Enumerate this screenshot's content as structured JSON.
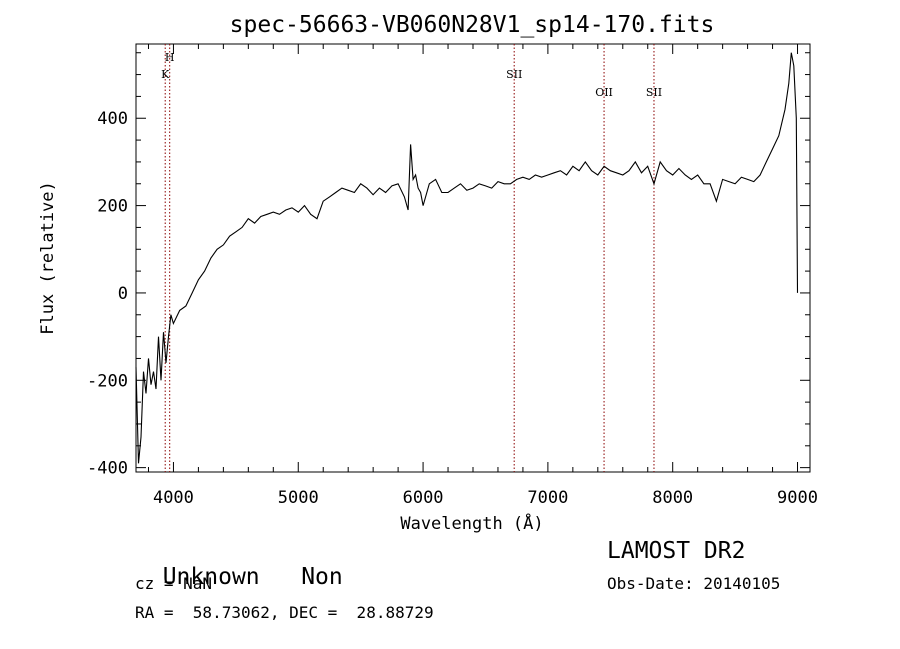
{
  "chart_data": {
    "type": "line",
    "title": "spec-56663-VB060N28V1_sp14-170.fits",
    "xlabel": "Wavelength (Å)",
    "ylabel": "Flux (relative)",
    "xlim": [
      3700,
      9100
    ],
    "ylim": [
      -410,
      570
    ],
    "x_ticks": [
      4000,
      5000,
      6000,
      7000,
      8000,
      9000
    ],
    "y_ticks": [
      -400,
      -200,
      0,
      200,
      400
    ],
    "grid": false,
    "line_color": "#000000",
    "marker_color": "#8b0000",
    "lines": [
      {
        "name": "H",
        "wavelength": 3970
      },
      {
        "name": "K",
        "wavelength": 3934
      },
      {
        "name": "SII",
        "wavelength": 6730
      },
      {
        "name": "OII",
        "wavelength": 7450
      },
      {
        "name": "SII",
        "wavelength": 7850
      }
    ],
    "series": [
      {
        "x": [
          3700,
          3720,
          3740,
          3760,
          3780,
          3800,
          3820,
          3840,
          3860,
          3880,
          3900,
          3920,
          3940,
          3960,
          3980,
          4000,
          4050,
          4100,
          4150,
          4200,
          4250,
          4300,
          4350,
          4400,
          4450,
          4500,
          4550,
          4600,
          4650,
          4700,
          4750,
          4800,
          4850,
          4900,
          4950,
          5000,
          5050,
          5100,
          5150,
          5200,
          5250,
          5300,
          5350,
          5400,
          5450,
          5500,
          5550,
          5600,
          5650,
          5700,
          5750,
          5800,
          5850,
          5880,
          5900,
          5920,
          5940,
          5960,
          5980,
          6000,
          6050,
          6100,
          6150,
          6200,
          6250,
          6300,
          6350,
          6400,
          6450,
          6500,
          6550,
          6600,
          6650,
          6700,
          6750,
          6800,
          6850,
          6900,
          6950,
          7000,
          7050,
          7100,
          7150,
          7200,
          7250,
          7300,
          7350,
          7400,
          7450,
          7500,
          7550,
          7600,
          7650,
          7700,
          7750,
          7800,
          7850,
          7900,
          7950,
          8000,
          8050,
          8100,
          8150,
          8200,
          8250,
          8300,
          8350,
          8400,
          8450,
          8500,
          8550,
          8600,
          8650,
          8700,
          8750,
          8800,
          8850,
          8900,
          8930,
          8950,
          8970,
          8990,
          9000
        ],
        "values": [
          -170,
          -390,
          -330,
          -180,
          -230,
          -150,
          -210,
          -180,
          -220,
          -100,
          -200,
          -90,
          -160,
          -100,
          -50,
          -70,
          -40,
          -30,
          0,
          30,
          50,
          80,
          100,
          110,
          130,
          140,
          150,
          170,
          160,
          175,
          180,
          185,
          180,
          190,
          195,
          185,
          200,
          180,
          170,
          210,
          220,
          230,
          240,
          235,
          230,
          250,
          240,
          225,
          240,
          230,
          245,
          250,
          220,
          190,
          340,
          260,
          270,
          240,
          230,
          200,
          250,
          260,
          230,
          230,
          240,
          250,
          235,
          240,
          250,
          245,
          240,
          255,
          250,
          250,
          260,
          265,
          260,
          270,
          265,
          270,
          275,
          280,
          270,
          290,
          280,
          300,
          280,
          270,
          290,
          280,
          275,
          270,
          280,
          300,
          275,
          290,
          250,
          300,
          280,
          270,
          285,
          270,
          260,
          270,
          250,
          250,
          210,
          260,
          255,
          250,
          265,
          260,
          255,
          270,
          300,
          330,
          360,
          420,
          480,
          550,
          520,
          400,
          0
        ]
      }
    ]
  },
  "info": {
    "class": "Unknown",
    "subclass": "Non",
    "cz": "cz = NaN",
    "coords": "RA =  58.73062, DEC =  28.88729",
    "survey": "LAMOST DR2",
    "obs_date": "Obs-Date: 20140105"
  }
}
